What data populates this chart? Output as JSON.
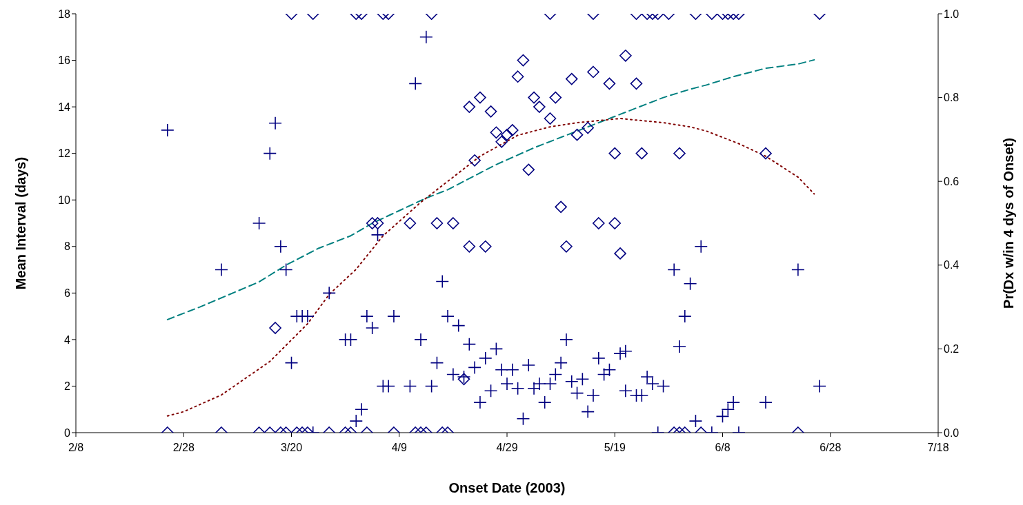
{
  "chart_data": {
    "type": "scatter",
    "xlabel": "Onset Date (2003)",
    "ylabel": "Mean Interval (days)",
    "y2label": "Pr(Dx w/in 4 dys of Onset)",
    "xlim": [
      "2003-02-08",
      "2003-07-18"
    ],
    "xticks": [
      {
        "value": "2003-02-08",
        "label": "2/8"
      },
      {
        "value": "2003-02-28",
        "label": "2/28"
      },
      {
        "value": "2003-03-20",
        "label": "3/20"
      },
      {
        "value": "2003-04-09",
        "label": "4/9"
      },
      {
        "value": "2003-04-29",
        "label": "4/29"
      },
      {
        "value": "2003-05-19",
        "label": "5/19"
      },
      {
        "value": "2003-06-08",
        "label": "6/8"
      },
      {
        "value": "2003-06-28",
        "label": "6/28"
      },
      {
        "value": "2003-07-18",
        "label": "7/18"
      }
    ],
    "ylim": [
      0,
      18
    ],
    "yticks": [
      0,
      2,
      4,
      6,
      8,
      10,
      12,
      14,
      16,
      18
    ],
    "y2lim": [
      0,
      1
    ],
    "y2ticks": [
      {
        "value": 0,
        "label": "0.0"
      },
      {
        "value": 0.2,
        "label": "0.2"
      },
      {
        "value": 0.4,
        "label": "0.4"
      },
      {
        "value": 0.6,
        "label": "0.6"
      },
      {
        "value": 0.8,
        "label": "0.8"
      },
      {
        "value": 1,
        "label": "1.0"
      }
    ],
    "series": [
      {
        "marker": "cross",
        "color": "#000080",
        "x": [
          "2003-02-25",
          "2003-03-07",
          "2003-03-14",
          "2003-03-16",
          "2003-03-17",
          "2003-03-18",
          "2003-03-19",
          "2003-03-20",
          "2003-03-21",
          "2003-03-22",
          "2003-03-23",
          "2003-03-24",
          "2003-03-27",
          "2003-03-30",
          "2003-03-31",
          "2003-04-01",
          "2003-04-02",
          "2003-04-03",
          "2003-04-04",
          "2003-04-05",
          "2003-04-06",
          "2003-04-07",
          "2003-04-08",
          "2003-04-11",
          "2003-04-12",
          "2003-04-13",
          "2003-04-14",
          "2003-04-15",
          "2003-04-16",
          "2003-04-17",
          "2003-04-18",
          "2003-04-19",
          "2003-04-20",
          "2003-04-21",
          "2003-04-22",
          "2003-04-23",
          "2003-04-24",
          "2003-04-25",
          "2003-04-26",
          "2003-04-27",
          "2003-04-28",
          "2003-04-29",
          "2003-04-30",
          "2003-05-01",
          "2003-05-02",
          "2003-05-03",
          "2003-05-04",
          "2003-05-05",
          "2003-05-06",
          "2003-05-07",
          "2003-05-08",
          "2003-05-09",
          "2003-05-10",
          "2003-05-11",
          "2003-05-12",
          "2003-05-13",
          "2003-05-14",
          "2003-05-15",
          "2003-05-16",
          "2003-05-17",
          "2003-05-18",
          "2003-05-20",
          "2003-05-21",
          "2003-05-21",
          "2003-05-23",
          "2003-05-24",
          "2003-05-25",
          "2003-05-26",
          "2003-05-27",
          "2003-05-28",
          "2003-05-30",
          "2003-05-31",
          "2003-06-01",
          "2003-06-02",
          "2003-06-03",
          "2003-06-04",
          "2003-06-06",
          "2003-06-08",
          "2003-06-09",
          "2003-06-10",
          "2003-06-11",
          "2003-06-16",
          "2003-06-22",
          "2003-06-26"
        ],
        "values": [
          13,
          7,
          9,
          12,
          13.3,
          8,
          7,
          3,
          5,
          5,
          5,
          0,
          6,
          4,
          4,
          0.5,
          1,
          5,
          4.5,
          8.5,
          2,
          2,
          5,
          2,
          15,
          4,
          17,
          2,
          3,
          6.5,
          5,
          2.5,
          4.6,
          2.4,
          3.8,
          2.8,
          1.3,
          3.2,
          1.8,
          3.6,
          2.7,
          2.1,
          2.7,
          1.9,
          0.6,
          2.9,
          1.9,
          2.1,
          1.3,
          2.1,
          2.5,
          3,
          4,
          2.2,
          1.7,
          2.3,
          0.9,
          1.6,
          3.2,
          2.5,
          2.7,
          3.4,
          3.5,
          1.8,
          1.6,
          1.6,
          2.4,
          2.1,
          0,
          2,
          7,
          3.7,
          5,
          6.4,
          0.5,
          8,
          0,
          0.7,
          1,
          1.3,
          0,
          1.3,
          7,
          2
        ]
      },
      {
        "marker": "diamond",
        "color": "#000080",
        "x": [
          "2003-02-25",
          "2003-03-07",
          "2003-03-14",
          "2003-03-16",
          "2003-03-17",
          "2003-03-18",
          "2003-03-19",
          "2003-03-20",
          "2003-03-21",
          "2003-03-22",
          "2003-03-23",
          "2003-03-24",
          "2003-03-27",
          "2003-03-30",
          "2003-03-31",
          "2003-04-01",
          "2003-04-02",
          "2003-04-03",
          "2003-04-04",
          "2003-04-05",
          "2003-04-06",
          "2003-04-07",
          "2003-04-08",
          "2003-04-11",
          "2003-04-12",
          "2003-04-13",
          "2003-04-14",
          "2003-04-15",
          "2003-04-16",
          "2003-04-17",
          "2003-04-18",
          "2003-04-19",
          "2003-04-21",
          "2003-04-22",
          "2003-04-22",
          "2003-04-23",
          "2003-04-24",
          "2003-04-25",
          "2003-04-26",
          "2003-04-27",
          "2003-04-28",
          "2003-04-29",
          "2003-04-30",
          "2003-05-01",
          "2003-05-02",
          "2003-05-03",
          "2003-05-04",
          "2003-05-05",
          "2003-05-07",
          "2003-05-07",
          "2003-05-08",
          "2003-05-09",
          "2003-05-10",
          "2003-05-11",
          "2003-05-12",
          "2003-05-14",
          "2003-05-15",
          "2003-05-15",
          "2003-05-16",
          "2003-05-18",
          "2003-05-19",
          "2003-05-19",
          "2003-05-20",
          "2003-05-21",
          "2003-05-23",
          "2003-05-23",
          "2003-05-24",
          "2003-05-25",
          "2003-05-26",
          "2003-05-27",
          "2003-05-29",
          "2003-05-30",
          "2003-05-31",
          "2003-05-31",
          "2003-06-01",
          "2003-06-03",
          "2003-06-04",
          "2003-06-06",
          "2003-06-08",
          "2003-06-09",
          "2003-06-10",
          "2003-06-11",
          "2003-06-16",
          "2003-06-22",
          "2003-06-26"
        ],
        "values": [
          0,
          0,
          0,
          0,
          4.5,
          0,
          0,
          18,
          0,
          0,
          0,
          18,
          0,
          0,
          0,
          18,
          18,
          0,
          9,
          9,
          18,
          18,
          0,
          9,
          0,
          0,
          0,
          18,
          9,
          0,
          0,
          9,
          2.3,
          8,
          14,
          11.7,
          14.4,
          8,
          13.8,
          12.9,
          12.5,
          12.8,
          13,
          15.3,
          16,
          11.3,
          14.4,
          14,
          13.5,
          18,
          14.4,
          9.7,
          8,
          15.2,
          12.8,
          13.1,
          15.5,
          18,
          9,
          15,
          12,
          9,
          7.7,
          16.2,
          15,
          18,
          12,
          18,
          18,
          18,
          18,
          0,
          0,
          12,
          0,
          18,
          0,
          18,
          18,
          18,
          18,
          18,
          12,
          0,
          18
        ]
      },
      {
        "type": "line",
        "axis": "y2",
        "marker": "none",
        "line_style": "dashed",
        "color": "#008080",
        "x": [
          "2003-02-25",
          "2003-03-03",
          "2003-03-14",
          "2003-03-19",
          "2003-03-25",
          "2003-03-31",
          "2003-04-04",
          "2003-04-14",
          "2003-04-18",
          "2003-04-27",
          "2003-05-04",
          "2003-05-12",
          "2003-05-20",
          "2003-05-28",
          "2003-06-02",
          "2003-06-05",
          "2003-06-10",
          "2003-06-16",
          "2003-06-22",
          "2003-06-25"
        ],
        "values": [
          0.27,
          0.3,
          0.36,
          0.4,
          0.44,
          0.47,
          0.5,
          0.56,
          0.58,
          0.64,
          0.68,
          0.72,
          0.76,
          0.8,
          0.82,
          0.83,
          0.85,
          0.87,
          0.88,
          0.89
        ]
      },
      {
        "type": "line",
        "axis": "y2",
        "marker": "none",
        "line_style": "dotted",
        "color": "#800000",
        "x": [
          "2003-02-25",
          "2003-02-28",
          "2003-03-07",
          "2003-03-16",
          "2003-03-23",
          "2003-03-27",
          "2003-04-01",
          "2003-04-06",
          "2003-04-13",
          "2003-04-18",
          "2003-04-24",
          "2003-05-01",
          "2003-05-07",
          "2003-05-12",
          "2003-05-20",
          "2003-05-28",
          "2003-06-02",
          "2003-06-05",
          "2003-06-11",
          "2003-06-16",
          "2003-06-22",
          "2003-06-25"
        ],
        "values": [
          0.04,
          0.05,
          0.09,
          0.17,
          0.26,
          0.33,
          0.39,
          0.47,
          0.55,
          0.6,
          0.66,
          0.71,
          0.73,
          0.74,
          0.75,
          0.74,
          0.73,
          0.72,
          0.69,
          0.66,
          0.61,
          0.57
        ]
      }
    ]
  }
}
